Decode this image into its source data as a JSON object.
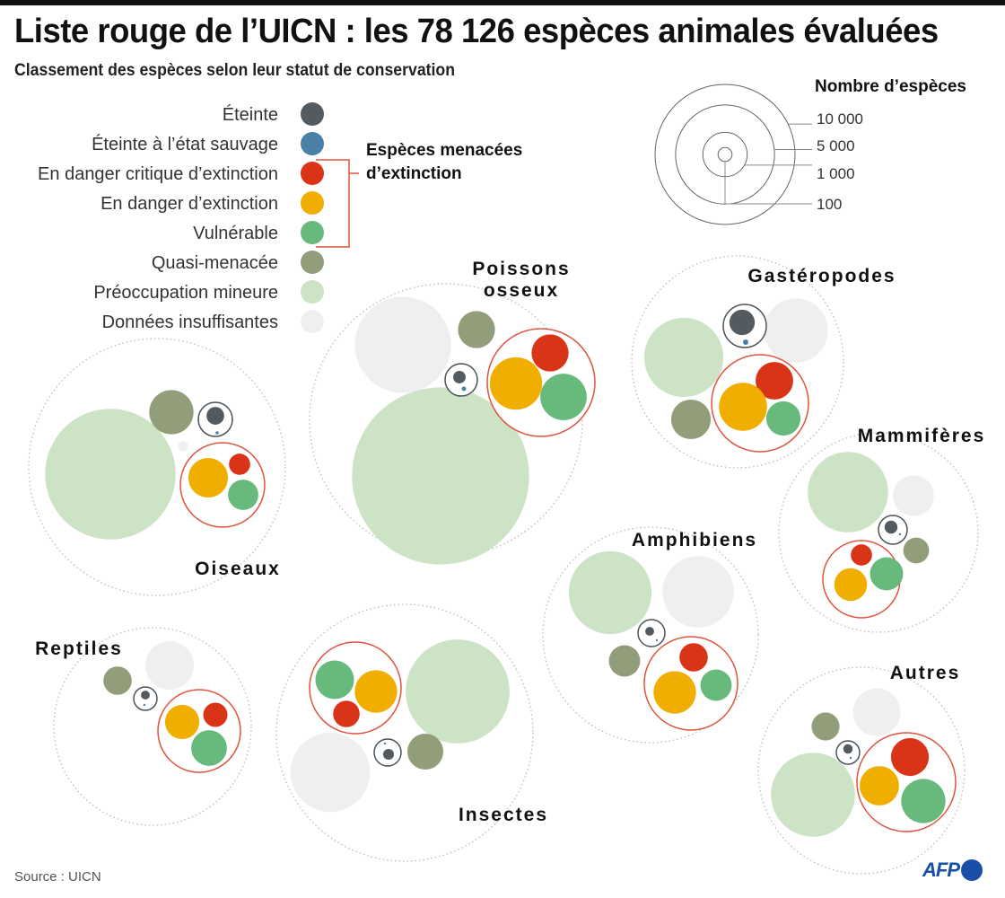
{
  "header": {
    "title": "Liste rouge de l’UICN : les 78 126 espèces animales évaluées",
    "subtitle": "Classement des espèces selon leur statut de conservation"
  },
  "footer": {
    "source": "Source : UICN",
    "logo_text": "AFP"
  },
  "chart_data": {
    "type": "bubble-cluster",
    "title": "Liste rouge de l’UICN : les 78 126 espèces animales évaluées",
    "subtitle": "Classement des espèces selon leur statut de conservation",
    "total_species": 78126,
    "categories": [
      {
        "key": "EX",
        "label": "Éteinte",
        "color": "#535a60"
      },
      {
        "key": "EW",
        "label": "Éteinte à l’état sauvage",
        "color": "#4a7fa8"
      },
      {
        "key": "CR",
        "label": "En danger critique d’extinction",
        "color": "#d93418"
      },
      {
        "key": "EN",
        "label": "En danger d’extinction",
        "color": "#f0ae00"
      },
      {
        "key": "VU",
        "label": "Vulnérable",
        "color": "#67b97c"
      },
      {
        "key": "NT",
        "label": "Quasi-menacée",
        "color": "#929e7a"
      },
      {
        "key": "LC",
        "label": "Préoccupation mineure",
        "color": "#cde3c6"
      },
      {
        "key": "DD",
        "label": "Données insuffisantes",
        "color": "#efefef"
      }
    ],
    "threatened_group": {
      "label_line1": "Espèces menacées",
      "label_line2": "d’extinction",
      "members": [
        "CR",
        "EN",
        "VU"
      ],
      "color": "#e0533d"
    },
    "size_legend": {
      "title": "Nombre d’espèces",
      "values": [
        10000,
        5000,
        1000,
        100
      ],
      "labels": [
        "10 000",
        "5 000",
        "1 000",
        "100"
      ]
    },
    "groups": [
      {
        "id": "oiseaux",
        "label": [
          "Oiseaux"
        ],
        "values": {
          "EX": 160,
          "EW": 5,
          "CR": 230,
          "EN": 800,
          "VU": 470,
          "NT": 1000,
          "LC": 8700,
          "DD": 50
        }
      },
      {
        "id": "poissons",
        "label": [
          "Poissons",
          "osseux"
        ],
        "values": {
          "EX": 80,
          "EW": 10,
          "CR": 700,
          "EN": 1400,
          "VU": 1100,
          "NT": 700,
          "LC": 16000,
          "DD": 4700
        }
      },
      {
        "id": "gasteropodes",
        "label": [
          "Gastéropodes"
        ],
        "values": {
          "EX": 330,
          "EW": 15,
          "CR": 720,
          "EN": 1180,
          "VU": 600,
          "NT": 800,
          "LC": 3200,
          "DD": 2100
        }
      },
      {
        "id": "mammiferes",
        "label": [
          "Mammifères"
        ],
        "values": {
          "EX": 85,
          "EW": 2,
          "CR": 230,
          "EN": 550,
          "VU": 560,
          "NT": 340,
          "LC": 3300,
          "DD": 850
        }
      },
      {
        "id": "amphibiens",
        "label": [
          "Amphibiens"
        ],
        "values": {
          "EX": 40,
          "EW": 2,
          "CR": 410,
          "EN": 920,
          "VU": 500,
          "NT": 500,
          "LC": 3500,
          "DD": 2600
        }
      },
      {
        "id": "reptiles",
        "label": [
          "Reptiles"
        ],
        "values": {
          "EX": 40,
          "EW": 2,
          "CR": 300,
          "EN": 600,
          "VU": 650,
          "NT": 410,
          "LC": 0,
          "DD": 1200
        }
      },
      {
        "id": "insectes",
        "label": [
          "Insectes"
        ],
        "values": {
          "EX": 60,
          "EW": 1,
          "CR": 360,
          "EN": 920,
          "VU": 760,
          "NT": 660,
          "LC": 5500,
          "DD": 3200
        }
      },
      {
        "id": "autres",
        "label": [
          "Autres"
        ],
        "values": {
          "EX": 45,
          "EW": 1,
          "CR": 730,
          "EN": 790,
          "VU": 1000,
          "NT": 400,
          "LC": 3600,
          "DD": 1150
        }
      }
    ]
  }
}
